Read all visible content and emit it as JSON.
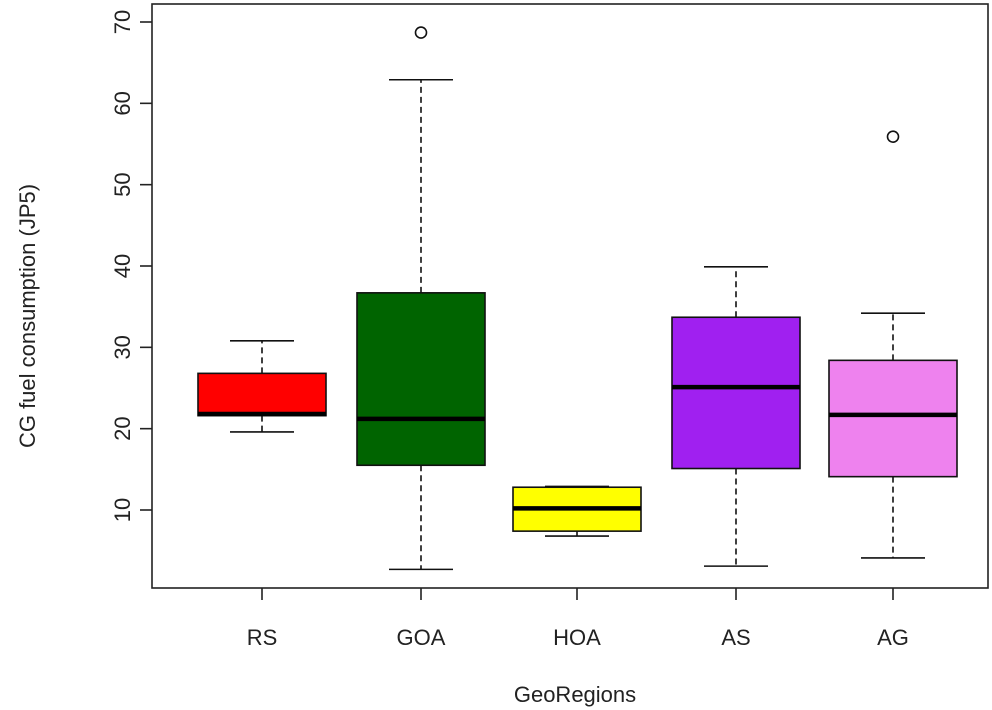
{
  "chart_data": {
    "type": "boxplot",
    "xlabel": "GeoRegions",
    "ylabel": "CG fuel consumption (JP5)",
    "ylim": [
      0,
      70
    ],
    "yticks": [
      10,
      20,
      30,
      40,
      50,
      60,
      70
    ],
    "grid": false,
    "categories": [
      "RS",
      "GOA",
      "HOA",
      "AS",
      "AG"
    ],
    "boxes": [
      {
        "category": "RS",
        "color": "#ff0000",
        "whisker_low": 19.6,
        "q1": 21.6,
        "median": 21.8,
        "q3": 26.8,
        "whisker_high": 30.8,
        "outliers": []
      },
      {
        "category": "GOA",
        "color": "#006400",
        "whisker_low": 2.7,
        "q1": 15.5,
        "median": 21.2,
        "q3": 36.7,
        "whisker_high": 62.9,
        "outliers": [
          68.7
        ]
      },
      {
        "category": "HOA",
        "color": "#ffff00",
        "whisker_low": 6.8,
        "q1": 7.4,
        "median": 10.2,
        "q3": 12.8,
        "whisker_high": 12.9,
        "outliers": []
      },
      {
        "category": "AS",
        "color": "#a020f0",
        "whisker_low": 3.1,
        "q1": 15.1,
        "median": 25.1,
        "q3": 33.7,
        "whisker_high": 39.9,
        "outliers": []
      },
      {
        "category": "AG",
        "color": "#ee82ee",
        "whisker_low": 4.1,
        "q1": 14.1,
        "median": 21.7,
        "q3": 28.4,
        "whisker_high": 34.2,
        "outliers": [
          55.9
        ]
      }
    ]
  }
}
